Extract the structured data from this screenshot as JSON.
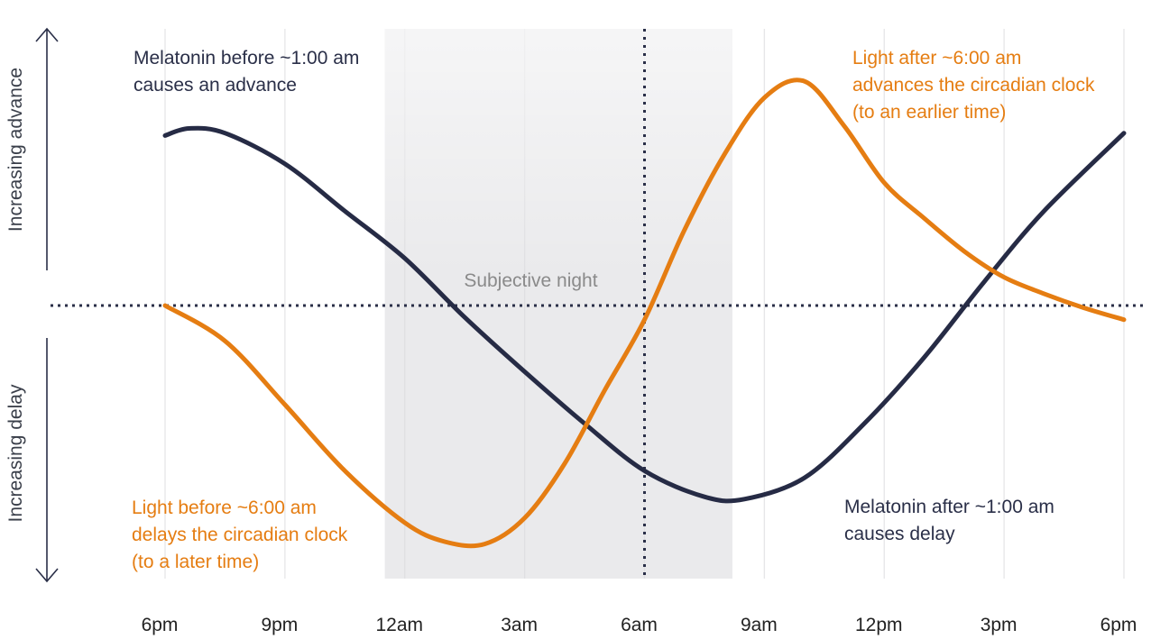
{
  "chart_data": {
    "type": "line",
    "x_ticks": [
      "6pm",
      "9pm",
      "12am",
      "3am",
      "6am",
      "9am",
      "12pm",
      "3pm",
      "6pm"
    ],
    "y_axis": {
      "upper_label": "Increasing advance",
      "lower_label": "Increasing delay"
    },
    "ylim": [
      -1,
      1
    ],
    "shaded_region": {
      "label": "Subjective night",
      "x_start_hours": 5.5,
      "x_end_hours": 14.2
    },
    "reference_line_x_hours": 12,
    "series": [
      {
        "color": "#262b45",
        "x_hours": [
          0,
          0.6,
          1.5,
          3,
          4.5,
          6,
          7.5,
          9,
          10.5,
          12,
          13.5,
          14.5,
          16,
          17.5,
          19,
          20.5,
          22,
          24
        ],
        "y": [
          0.72,
          0.75,
          0.73,
          0.6,
          0.4,
          0.2,
          -0.05,
          -0.28,
          -0.5,
          -0.7,
          -0.81,
          -0.82,
          -0.73,
          -0.5,
          -0.22,
          0.1,
          0.4,
          0.73
        ]
      },
      {
        "color": "#e57d12",
        "x_hours": [
          0,
          1.5,
          3,
          4.5,
          6,
          7,
          8,
          9,
          10,
          11,
          12,
          13,
          14,
          15,
          16,
          17,
          18,
          19,
          20,
          21,
          22,
          23,
          24
        ],
        "y": [
          0,
          -0.15,
          -0.42,
          -0.7,
          -0.92,
          -1.0,
          -1.01,
          -0.9,
          -0.67,
          -0.36,
          -0.06,
          0.32,
          0.64,
          0.88,
          0.95,
          0.76,
          0.52,
          0.37,
          0.23,
          0.12,
          0.05,
          -0.01,
          -0.06
        ]
      }
    ],
    "annotations": [
      {
        "lines": [
          "Melatonin before ~1:00 am",
          "causes an advance"
        ],
        "color": "#2a2f48"
      },
      {
        "lines": [
          "Light after ~6:00 am",
          "advances the circadian clock",
          "(to an earlier time)"
        ],
        "color": "#e57d12"
      },
      {
        "lines": [
          "Light before ~6:00 am",
          "delays the circadian clock",
          "(to a later time)"
        ],
        "color": "#e57d12"
      },
      {
        "lines": [
          "Melatonin after ~1:00 am",
          "causes delay"
        ],
        "color": "#2a2f48"
      }
    ]
  }
}
